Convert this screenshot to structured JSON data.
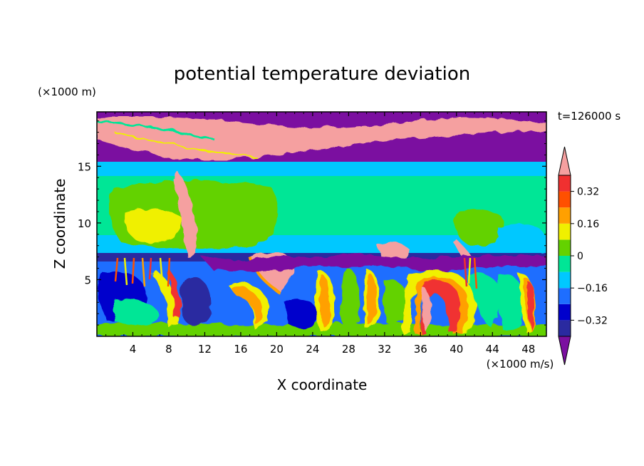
{
  "chart_data": {
    "type": "heatmap",
    "title": "potential temperature deviation",
    "xlabel": "X coordinate",
    "ylabel": "Z coordinate",
    "x_unit": "(×1000 m/s)",
    "y_unit": "(×1000 m)",
    "time_label": "t=126000 s",
    "xlim": [
      0,
      50
    ],
    "ylim": [
      0,
      19.8
    ],
    "x_ticks": [
      4,
      8,
      12,
      16,
      20,
      24,
      28,
      32,
      36,
      40,
      44,
      48
    ],
    "y_ticks": [
      5,
      10,
      15
    ],
    "colorbar": {
      "levels": [
        -0.4,
        -0.32,
        -0.24,
        -0.16,
        -0.08,
        0,
        0.08,
        0.16,
        0.24,
        0.32,
        0.4
      ],
      "tick_labels": [
        {
          "value": 0.32,
          "label": "0.32"
        },
        {
          "value": 0.16,
          "label": "0.16"
        },
        {
          "value": 0,
          "label": "0"
        },
        {
          "value": -0.16,
          "label": "−0.16"
        },
        {
          "value": -0.32,
          "label": "−0.32"
        }
      ],
      "colors": [
        "#7b0fa0",
        "#2a2aa0",
        "#0000cc",
        "#1e6eff",
        "#00c8ff",
        "#00e696",
        "#64d200",
        "#f0f000",
        "#ffa000",
        "#ff5000",
        "#f03030",
        "#f5a0a0"
      ]
    },
    "layers": [
      {
        "z_range": [
          15.5,
          19.8
        ],
        "value": "< -0.4",
        "note": "upper purple band with pink > 0.4 streak"
      },
      {
        "z_range": [
          7.5,
          15.5
        ],
        "value": "-0.16 to 0.16",
        "note": "green/cyan mid layer, yellow patches near x=6 and x=42"
      },
      {
        "z_range": [
          0,
          7.5
        ],
        "value": "-0.4 to > 0.4",
        "note": "turbulent convective eddies"
      }
    ]
  }
}
